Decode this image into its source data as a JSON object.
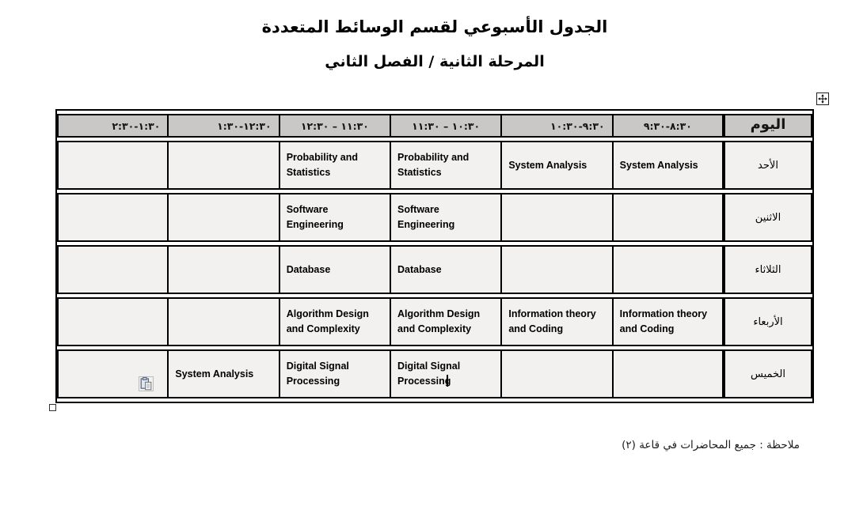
{
  "page": {
    "title_line1": "الجدول الأسبوعي لقسم الوسائط المتعددة",
    "title_line2": "المرحلة الثانية / الفصل الثاني",
    "note": "ملاحظة : جميع المحاضرات في قاعة (٢)"
  },
  "table": {
    "day_header": "اليوم",
    "time_headers": [
      "٨:٣٠-٩:٣٠",
      "٩:٣٠-١٠:٣٠",
      "١٠:٣٠ – ١١:٣٠",
      "١١:٣٠ – ١٢:٣٠",
      "١٢:٣٠-١:٣٠",
      "١:٣٠-٢:٣٠"
    ],
    "rows": [
      {
        "day": "الأحد",
        "slots": [
          "System Analysis",
          "System Analysis",
          "Probability and Statistics",
          "Probability and Statistics",
          "",
          ""
        ]
      },
      {
        "day": "الاثنين",
        "slots": [
          "",
          "",
          "Software Engineering",
          "Software Engineering",
          "",
          ""
        ]
      },
      {
        "day": "الثلاثاء",
        "slots": [
          "",
          "",
          "Database",
          "Database",
          "",
          ""
        ]
      },
      {
        "day": "الأربعاء",
        "slots": [
          "Information theory and Coding",
          "Information theory and Coding",
          "Algorithm Design and Complexity",
          "Algorithm Design and Complexity",
          "",
          ""
        ]
      },
      {
        "day": "الخميس",
        "slots": [
          "",
          "",
          "Digital Signal Processing",
          "Digital Signal Processing",
          "System Analysis",
          ""
        ]
      }
    ],
    "text_cursor": {
      "row": 4,
      "slot": 2
    },
    "paste_button": {
      "row": 4,
      "slot": 5
    }
  },
  "icons": {
    "move_handle": "table-move-handle-icon (four-direction arrows in box)",
    "resize_handle": "table-resize-handle (small hollow square)",
    "paste_options": "paste-options-icon (clipboard with page)",
    "text_cursor": "text-caret (I-beam)"
  },
  "colors": {
    "header_fill": "#c9c8c6",
    "cell_fill": "#f2f1ef",
    "border": "#000000",
    "page_bg": "#ffffff"
  }
}
